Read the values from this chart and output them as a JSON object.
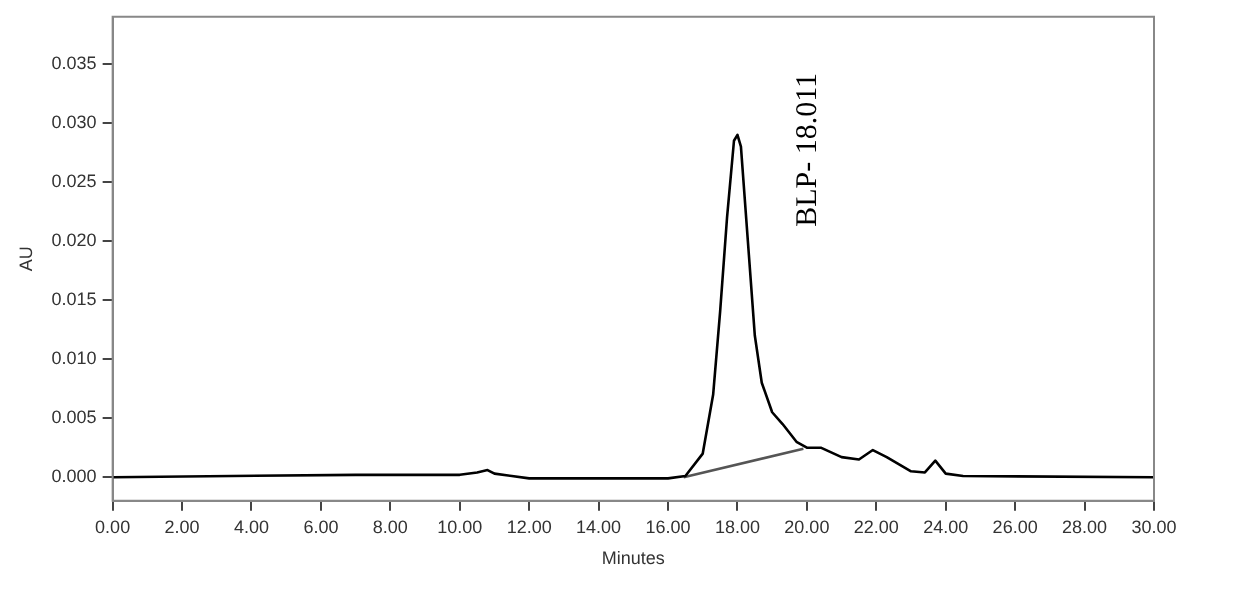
{
  "chart_data": {
    "type": "line",
    "xlabel": "Minutes",
    "ylabel": "AU",
    "xlim": [
      0,
      30
    ],
    "ylim": [
      -0.002,
      0.039
    ],
    "xticks": [
      {
        "value": 0,
        "label": "0.00"
      },
      {
        "value": 2,
        "label": "2.00"
      },
      {
        "value": 4,
        "label": "4.00"
      },
      {
        "value": 6,
        "label": "6.00"
      },
      {
        "value": 8,
        "label": "8.00"
      },
      {
        "value": 10,
        "label": "10.00"
      },
      {
        "value": 12,
        "label": "12.00"
      },
      {
        "value": 14,
        "label": "14.00"
      },
      {
        "value": 16,
        "label": "16.00"
      },
      {
        "value": 18,
        "label": "18.00"
      },
      {
        "value": 20,
        "label": "20.00"
      },
      {
        "value": 22,
        "label": "22.00"
      },
      {
        "value": 24,
        "label": "24.00"
      },
      {
        "value": 26,
        "label": "26.00"
      },
      {
        "value": 28,
        "label": "28.00"
      },
      {
        "value": 30,
        "label": "30.00"
      }
    ],
    "yticks": [
      {
        "value": 0,
        "label": "0.000"
      },
      {
        "value": 0.005,
        "label": "0.005"
      },
      {
        "value": 0.01,
        "label": "0.010"
      },
      {
        "value": 0.015,
        "label": "0.015"
      },
      {
        "value": 0.02,
        "label": "0.020"
      },
      {
        "value": 0.025,
        "label": "0.025"
      },
      {
        "value": 0.03,
        "label": "0.030"
      },
      {
        "value": 0.035,
        "label": "0.035"
      }
    ],
    "grid": false,
    "legend": false,
    "marker": "none",
    "line_style": "solid",
    "series": [
      {
        "color": "#000000",
        "x": [
          0,
          7,
          10,
          10.5,
          10.8,
          11,
          11.5,
          12,
          16,
          16.5,
          17,
          17.3,
          17.5,
          17.7,
          17.9,
          18,
          18.1,
          18.3,
          18.5,
          18.7,
          19,
          19.3,
          19.7,
          20,
          20.4,
          21,
          21.5,
          21.9,
          22.3,
          23,
          23.4,
          23.7,
          24,
          24.5,
          30
        ],
        "values": [
          0,
          0.0002,
          0.0002,
          0.0004,
          0.0006,
          0.0003,
          0.0001,
          -0.0001,
          -0.0001,
          0.0001,
          0.002,
          0.007,
          0.014,
          0.022,
          0.0285,
          0.029,
          0.028,
          0.02,
          0.012,
          0.008,
          0.0055,
          0.0045,
          0.003,
          0.0025,
          0.0025,
          0.0017,
          0.0015,
          0.0023,
          0.0017,
          0.0005,
          0.0004,
          0.0014,
          0.0003,
          0.0001,
          0
        ]
      },
      {
        "color": "#555555",
        "x": [
          16.45,
          19.9
        ],
        "values": [
          0,
          0.0024
        ]
      }
    ],
    "annotations": [
      {
        "text": "BLP- 18.011",
        "x": 18.011,
        "y": 0.029
      }
    ]
  }
}
